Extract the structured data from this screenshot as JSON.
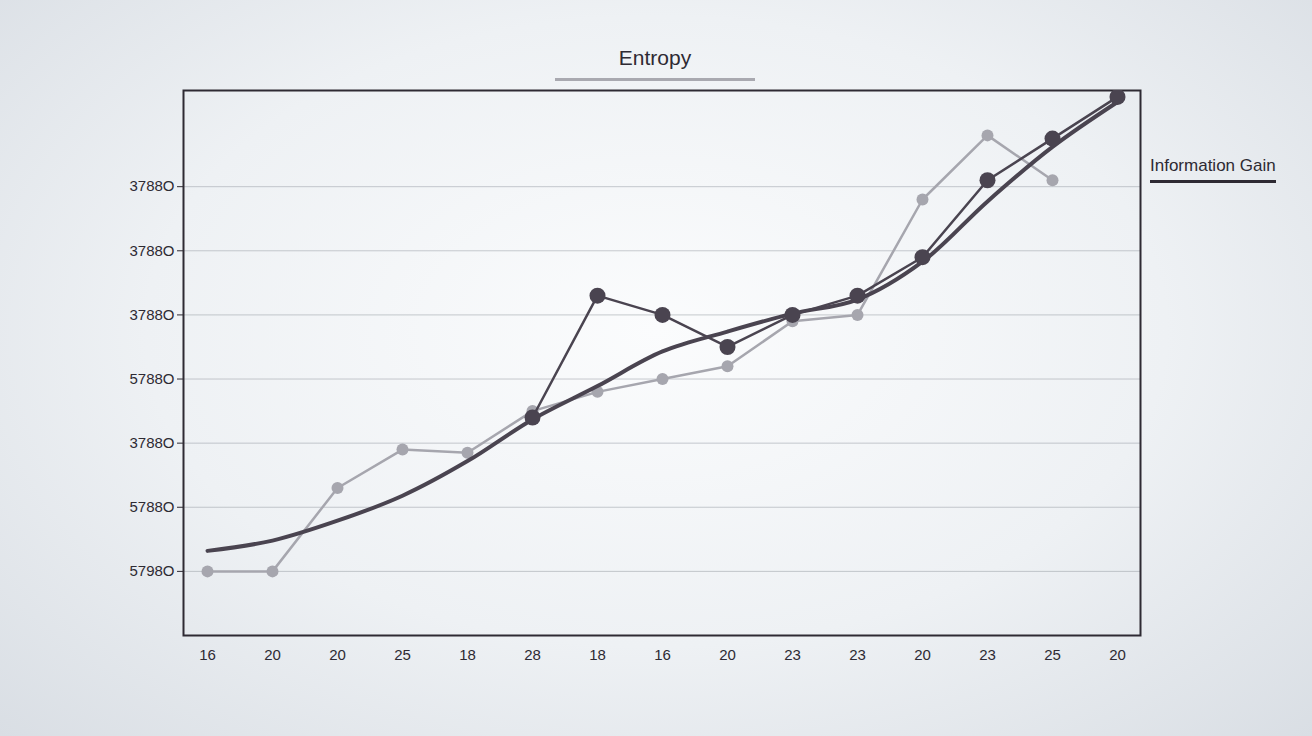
{
  "chart_data": {
    "type": "line",
    "title": "Entropy",
    "annotations": [
      {
        "text": "Information Gain"
      }
    ],
    "categories": [
      "16",
      "20",
      "20",
      "25",
      "18",
      "28",
      "18",
      "16",
      "20",
      "23",
      "23",
      "20",
      "23",
      "25",
      "20"
    ],
    "series": [
      {
        "color": "#a6a6ae",
        "marker": "circle",
        "line_style": "solid",
        "values": [
          1.0,
          1.0,
          2.3,
          2.9,
          2.85,
          3.5,
          3.8,
          4.0,
          4.2,
          4.9,
          5.0,
          6.8,
          7.8,
          7.1,
          null
        ]
      },
      {
        "color": "#4a4450",
        "marker": "none",
        "line_style": "solid",
        "values": [
          1.32,
          1.48,
          1.79,
          2.18,
          2.72,
          3.37,
          3.89,
          4.43,
          4.74,
          5.02,
          5.24,
          5.83,
          6.77,
          7.62,
          8.32
        ]
      },
      {
        "color": "#4a4450",
        "marker": "circle",
        "line_style": "solid",
        "values": [
          null,
          null,
          null,
          null,
          null,
          3.4,
          5.3,
          5.0,
          4.5,
          5.0,
          5.3,
          5.9,
          7.1,
          7.75,
          8.4
        ]
      }
    ],
    "ylim": [
      0,
      8.5
    ],
    "yticks": [
      {
        "value": 1,
        "label": "5798O"
      },
      {
        "value": 2,
        "label": "5788O"
      },
      {
        "value": 3,
        "label": "3788O"
      },
      {
        "value": 4,
        "label": "5788O"
      },
      {
        "value": 5,
        "label": "3788O"
      },
      {
        "value": 6,
        "label": "3788O"
      },
      {
        "value": 7,
        "label": "3788O"
      }
    ],
    "grid": true
  }
}
